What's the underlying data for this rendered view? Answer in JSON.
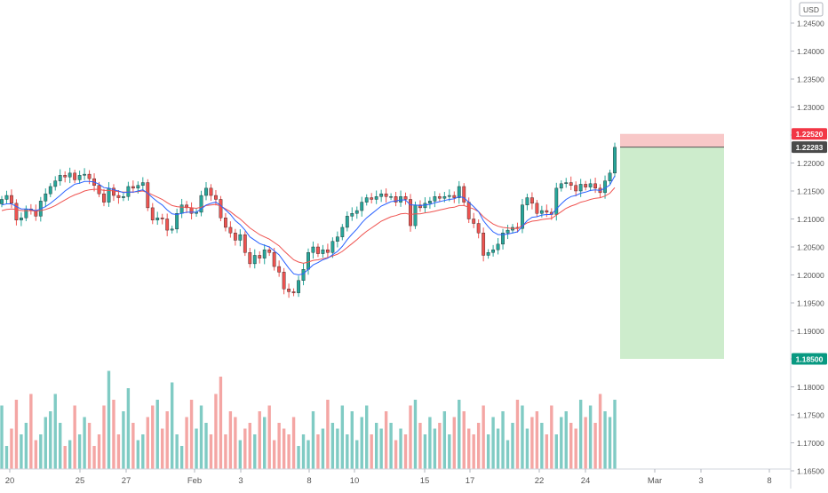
{
  "chart_data": {
    "type": "candlestick",
    "title": "",
    "currency": "USD",
    "y_axis": {
      "range": [
        1.165,
        1.2505
      ],
      "ticks": [
        "1.24500",
        "1.24000",
        "1.23500",
        "1.23000",
        "1.22500",
        "1.22000",
        "1.21500",
        "1.21000",
        "1.20500",
        "1.20000",
        "1.19500",
        "1.19000",
        "1.18500",
        "1.18000",
        "1.17500",
        "1.17000",
        "1.16500"
      ]
    },
    "x_axis": {
      "ticks": [
        "20",
        "25",
        "27",
        "Feb",
        "3",
        "8",
        "10",
        "15",
        "17",
        "22",
        "24",
        "Mar",
        "3",
        "8"
      ]
    },
    "colors": {
      "up": "#26a69a",
      "down": "#ef5350",
      "volume_up": "#80cbc4",
      "volume_down": "#f4a6a4",
      "ma_fast": "#2962ff",
      "ma_slow": "#ef5350",
      "stop_zone": "#f8c8c8",
      "target_zone": "#cdeccc",
      "price_label": "#4a4a4a",
      "stop_label": "#f23645",
      "target_label": "#089981"
    },
    "price_labels": {
      "current": "1.22283",
      "stop": "1.22520",
      "target": "1.18500"
    },
    "position": {
      "type": "short",
      "entry": 1.22283,
      "stop": 1.2252,
      "target": 1.185
    },
    "series": {
      "close": [
        1.2135,
        1.2142,
        1.2128,
        1.2098,
        1.2102,
        1.2118,
        1.2115,
        1.2105,
        1.2132,
        1.2145,
        1.2158,
        1.2168,
        1.2178,
        1.2175,
        1.2182,
        1.217,
        1.2178,
        1.218,
        1.2172,
        1.216,
        1.2145,
        1.213,
        1.2155,
        1.2142,
        1.2138,
        1.214,
        1.2158,
        1.2155,
        1.216,
        1.2165,
        1.212,
        1.2098,
        1.2102,
        1.21,
        1.208,
        1.2082,
        1.211,
        1.2125,
        1.212,
        1.211,
        1.2112,
        1.2142,
        1.2155,
        1.2142,
        1.2135,
        1.2102,
        1.2085,
        1.2075,
        1.2062,
        1.2072,
        1.204,
        1.202,
        1.2035,
        1.203,
        1.2045,
        1.204,
        1.2015,
        1.2005,
        1.1975,
        1.197,
        1.1968,
        1.199,
        1.201,
        1.204,
        1.205,
        1.2038,
        1.2045,
        1.204,
        1.206,
        1.2068,
        1.2085,
        1.2105,
        1.211,
        1.2115,
        1.213,
        1.2138,
        1.2135,
        1.214,
        1.2145,
        1.214,
        1.214,
        1.213,
        1.214,
        1.2135,
        1.2088,
        1.2125,
        1.212,
        1.2128,
        1.2132,
        1.214,
        1.2137,
        1.214,
        1.2142,
        1.2138,
        1.2158,
        1.213,
        1.21,
        1.2092,
        1.2075,
        1.2035,
        1.204,
        1.2045,
        1.2055,
        1.2075,
        1.208,
        1.2085,
        1.2083,
        1.2125,
        1.2138,
        1.2128,
        1.211,
        1.2115,
        1.2112,
        1.2108,
        1.2155,
        1.2163,
        1.2165,
        1.216,
        1.215,
        1.2162,
        1.2157,
        1.2163,
        1.2155,
        1.2147,
        1.2168,
        1.2182,
        1.2228
      ],
      "ma_fast": [
        1.2125,
        1.2127,
        1.2127,
        1.2122,
        1.2118,
        1.2118,
        1.2117,
        1.2115,
        1.2118,
        1.2122,
        1.2128,
        1.2135,
        1.2142,
        1.215,
        1.2156,
        1.2162,
        1.2164,
        1.2167,
        1.2167,
        1.2166,
        1.2162,
        1.2156,
        1.2155,
        1.2152,
        1.215,
        1.2147,
        1.2148,
        1.2148,
        1.215,
        1.2152,
        1.2146,
        1.2138,
        1.2131,
        1.2125,
        1.2116,
        1.2109,
        1.2108,
        1.211,
        1.2112,
        1.2112,
        1.2112,
        1.2118,
        1.2125,
        1.2128,
        1.213,
        1.2124,
        1.2116,
        1.2108,
        1.2097,
        1.209,
        1.208,
        1.2068,
        1.2062,
        1.2056,
        1.2053,
        1.205,
        1.2043,
        1.2036,
        1.2024,
        1.2012,
        1.2002,
        1.2,
        1.2002,
        1.201,
        1.2018,
        1.2022,
        1.2027,
        1.203,
        1.2036,
        1.2042,
        1.2051,
        1.2063,
        1.2073,
        1.2082,
        1.2093,
        1.2102,
        1.2109,
        1.2116,
        1.2123,
        1.2127,
        1.2131,
        1.2132,
        1.2134,
        1.2134,
        1.2125,
        1.2125,
        1.2124,
        1.2125,
        1.2126,
        1.2129,
        1.2131,
        1.2133,
        1.2135,
        1.2136,
        1.214,
        1.2138,
        1.213,
        1.2122,
        1.2113,
        1.2097,
        1.2086,
        1.2077,
        1.2072,
        1.2072,
        1.2073,
        1.2075,
        1.2077,
        1.2087,
        1.2097,
        1.2103,
        1.2104,
        1.2107,
        1.2108,
        1.2108,
        1.2118,
        1.2127,
        1.2135,
        1.214,
        1.2142,
        1.2146,
        1.2148,
        1.2151,
        1.2152,
        1.2151,
        1.2155,
        1.2161,
        1.2177
      ],
      "ma_slow": [
        1.2115,
        1.2117,
        1.2118,
        1.2117,
        1.2115,
        1.2115,
        1.2115,
        1.2114,
        1.2115,
        1.2117,
        1.212,
        1.2124,
        1.2129,
        1.2134,
        1.2139,
        1.2143,
        1.2146,
        1.215,
        1.2152,
        1.2153,
        1.2153,
        1.2151,
        1.2151,
        1.215,
        1.2149,
        1.2148,
        1.2148,
        1.2148,
        1.2149,
        1.215,
        1.2147,
        1.2143,
        1.2139,
        1.2135,
        1.2129,
        1.2124,
        1.2122,
        1.2121,
        1.2121,
        1.212,
        1.2119,
        1.2121,
        1.2124,
        1.2125,
        1.2126,
        1.2123,
        1.2118,
        1.2113,
        1.2106,
        1.21,
        1.2092,
        1.2084,
        1.2078,
        1.2072,
        1.2068,
        1.2064,
        1.2058,
        1.2052,
        1.2043,
        1.2035,
        1.2027,
        1.2023,
        1.2021,
        1.2023,
        1.2026,
        1.2027,
        1.2029,
        1.2031,
        1.2034,
        1.2037,
        1.2042,
        1.2049,
        1.2056,
        1.2063,
        1.2071,
        1.2078,
        1.2084,
        1.209,
        1.2096,
        1.21,
        1.2104,
        1.2106,
        1.2109,
        1.211,
        1.2108,
        1.2109,
        1.2109,
        1.2111,
        1.2112,
        1.2114,
        1.2116,
        1.2118,
        1.212,
        1.2121,
        1.2124,
        1.2124,
        1.2121,
        1.2118,
        1.2113,
        1.2104,
        1.2097,
        1.2091,
        1.2087,
        1.2085,
        1.2084,
        1.2083,
        1.2083,
        1.2088,
        1.2093,
        1.2096,
        1.2097,
        1.2099,
        1.21,
        1.2101,
        1.2107,
        1.2113,
        1.2119,
        1.2123,
        1.2126,
        1.213,
        1.2132,
        1.2135,
        1.2137,
        1.2138,
        1.2141,
        1.2146,
        1.2156
      ],
      "volume": [
        0.55,
        0.2,
        0.35,
        0.6,
        0.3,
        0.4,
        0.65,
        0.25,
        0.3,
        0.45,
        0.5,
        0.65,
        0.4,
        0.2,
        0.25,
        0.55,
        0.3,
        0.45,
        0.4,
        0.2,
        0.3,
        0.55,
        0.85,
        0.6,
        0.3,
        0.5,
        0.7,
        0.4,
        0.25,
        0.3,
        0.45,
        0.55,
        0.6,
        0.35,
        0.5,
        0.75,
        0.3,
        0.2,
        0.45,
        0.6,
        0.35,
        0.55,
        0.4,
        0.3,
        0.65,
        0.8,
        0.3,
        0.5,
        0.45,
        0.25,
        0.35,
        0.4,
        0.3,
        0.5,
        0.45,
        0.55,
        0.25,
        0.4,
        0.35,
        0.3,
        0.45,
        0.2,
        0.3,
        0.25,
        0.5,
        0.3,
        0.35,
        0.6,
        0.4,
        0.35,
        0.55,
        0.3,
        0.5,
        0.25,
        0.45,
        0.55,
        0.3,
        0.4,
        0.35,
        0.5,
        0.4,
        0.25,
        0.35,
        0.3,
        0.55,
        0.6,
        0.4,
        0.3,
        0.45,
        0.35,
        0.4,
        0.5,
        0.3,
        0.45,
        0.6,
        0.5,
        0.35,
        0.3,
        0.4,
        0.55,
        0.3,
        0.45,
        0.35,
        0.5,
        0.25,
        0.4,
        0.6,
        0.55,
        0.35,
        0.45,
        0.5,
        0.4,
        0.3,
        0.55,
        0.3,
        0.45,
        0.5,
        0.4,
        0.35,
        0.6,
        0.45,
        0.55,
        0.4,
        0.65,
        0.5,
        0.45,
        0.6
      ]
    }
  }
}
